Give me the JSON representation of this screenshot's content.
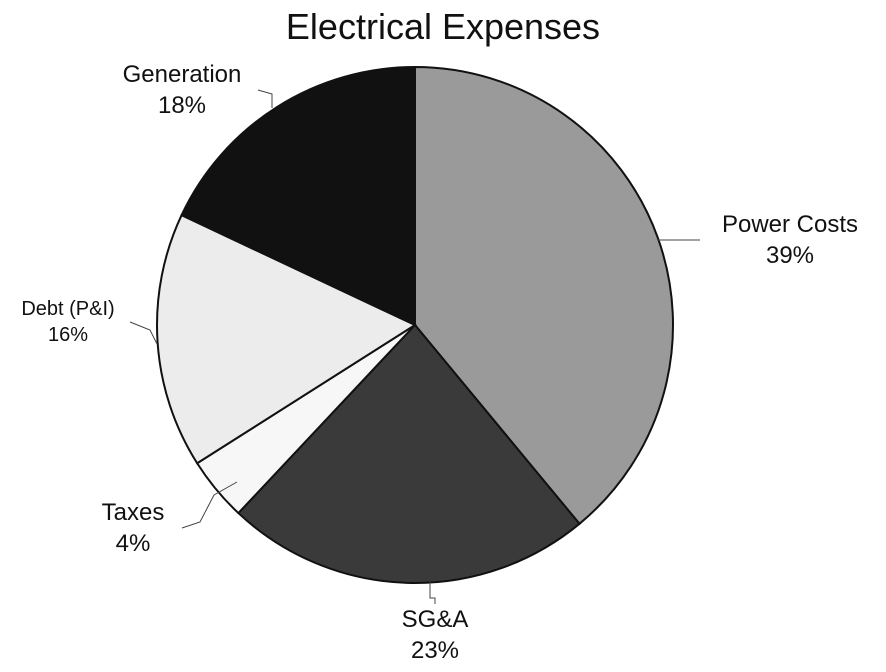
{
  "chart_data": {
    "type": "pie",
    "title": "Electrical Expenses",
    "slices": [
      {
        "label": "Power Costs",
        "pct_label": "39%",
        "value": 39,
        "color": "#9a9a9a"
      },
      {
        "label": "SG&A",
        "pct_label": "23%",
        "value": 23,
        "color": "#3a3a3a"
      },
      {
        "label": "Taxes",
        "pct_label": "4%",
        "value": 4,
        "color": "#f7f7f7"
      },
      {
        "label": "Debt (P&I)",
        "pct_label": "16%",
        "value": 16,
        "color": "#ececec"
      },
      {
        "label": "Generation",
        "pct_label": "18%",
        "value": 18,
        "color": "#111111"
      }
    ],
    "start_angle_deg": 0,
    "direction": "clockwise",
    "legend": "none",
    "grid": false
  }
}
